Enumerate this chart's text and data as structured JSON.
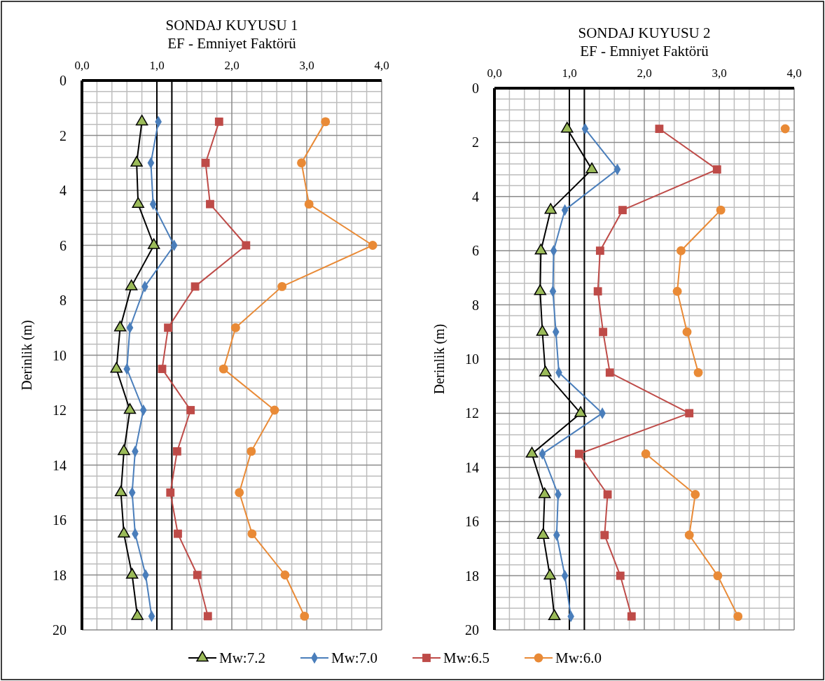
{
  "chart_data": [
    {
      "type": "line",
      "title": "SONDAJ KUYUSU 1",
      "subtitle": "EF  - Emniyet Faktörü",
      "ylabel": "Derinlik (m)",
      "xlim": [
        0,
        4
      ],
      "xticks": [
        {
          "value": 0,
          "label": "0,0"
        },
        {
          "value": 1,
          "label": "1,0"
        },
        {
          "value": 2,
          "label": "2,0"
        },
        {
          "value": 3,
          "label": "3,0"
        },
        {
          "value": 4,
          "label": "4,0"
        }
      ],
      "ylim": [
        20,
        0
      ],
      "yticks": [
        0,
        2,
        4,
        6,
        8,
        10,
        12,
        14,
        16,
        18,
        20
      ],
      "grid": true,
      "legend": "bottom",
      "ref_lines": [
        {
          "axis": "x",
          "value": 1.0,
          "color": "#000000"
        },
        {
          "axis": "x",
          "value": 1.2,
          "color": "#000000"
        }
      ],
      "series": [
        {
          "name": "Mw:7.2",
          "color": "#000000",
          "marker": "triangle",
          "x": [
            0.8,
            0.73,
            0.75,
            0.96,
            0.66,
            0.51,
            0.46,
            0.64,
            0.56,
            0.52,
            0.56,
            0.67,
            0.74
          ],
          "values": [
            1.5,
            3,
            4.5,
            6,
            7.5,
            9,
            10.5,
            12,
            13.5,
            15,
            16.5,
            18,
            19.5
          ]
        },
        {
          "name": "Mw:7.0",
          "color": "#4a7ebb",
          "marker": "diamond",
          "x": [
            1.02,
            0.92,
            0.95,
            1.23,
            0.84,
            0.64,
            0.6,
            0.82,
            0.71,
            0.67,
            0.71,
            0.85,
            0.93
          ],
          "values": [
            1.5,
            3,
            4.5,
            6,
            7.5,
            9,
            10.5,
            12,
            13.5,
            15,
            16.5,
            18,
            19.5
          ]
        },
        {
          "name": "Mw:6.5",
          "color": "#be4b48",
          "marker": "square",
          "x": [
            1.83,
            1.65,
            1.71,
            2.19,
            1.51,
            1.15,
            1.07,
            1.45,
            1.27,
            1.18,
            1.28,
            1.54,
            1.68
          ],
          "values": [
            1.5,
            3,
            4.5,
            6,
            7.5,
            9,
            10.5,
            12,
            13.5,
            15,
            16.5,
            18,
            19.5
          ]
        },
        {
          "name": "Mw:6.0",
          "color": "#e98a36",
          "marker": "circle",
          "x": [
            3.25,
            2.93,
            3.03,
            3.88,
            2.67,
            2.05,
            1.89,
            2.57,
            2.26,
            2.1,
            2.27,
            2.71,
            2.97
          ],
          "values": [
            1.5,
            3,
            4.5,
            6,
            7.5,
            9,
            10.5,
            12,
            13.5,
            15,
            16.5,
            18,
            19.5
          ]
        }
      ]
    },
    {
      "type": "line",
      "title": "SONDAJ KUYUSU 2",
      "subtitle": "EF  - Emniyet Faktörü",
      "ylabel": "Derinlik (m)",
      "xlim": [
        0,
        4
      ],
      "xticks": [
        {
          "value": 0,
          "label": "0,0"
        },
        {
          "value": 1,
          "label": "1,0"
        },
        {
          "value": 2,
          "label": "2,0"
        },
        {
          "value": 3,
          "label": "3,0"
        },
        {
          "value": 4,
          "label": "4,0"
        }
      ],
      "ylim": [
        20,
        0
      ],
      "yticks": [
        0,
        2,
        4,
        6,
        8,
        10,
        12,
        14,
        16,
        18,
        20
      ],
      "grid": true,
      "legend": "bottom",
      "ref_lines": [
        {
          "axis": "x",
          "value": 1.0,
          "color": "#000000"
        },
        {
          "axis": "x",
          "value": 1.2,
          "color": "#000000"
        }
      ],
      "series": [
        {
          "name": "Mw:7.2",
          "color": "#000000",
          "marker": "triangle",
          "x": [
            0.97,
            1.3,
            0.75,
            0.62,
            0.61,
            0.64,
            0.68,
            1.15,
            0.5,
            0.67,
            0.65,
            0.74,
            0.8
          ],
          "values": [
            1.5,
            3,
            4.5,
            6,
            7.5,
            9,
            10.5,
            12,
            13.5,
            15,
            16.5,
            18,
            19.5
          ]
        },
        {
          "name": "Mw:7.0",
          "color": "#4a7ebb",
          "marker": "diamond",
          "x": [
            1.21,
            1.64,
            0.94,
            0.79,
            0.78,
            0.82,
            0.86,
            1.44,
            0.64,
            0.85,
            0.83,
            0.94,
            1.02
          ],
          "values": [
            1.5,
            3,
            4.5,
            6,
            7.5,
            9,
            10.5,
            12,
            13.5,
            15,
            16.5,
            18,
            19.5
          ]
        },
        {
          "name": "Mw:6.5",
          "color": "#be4b48",
          "marker": "square",
          "x": [
            2.2,
            2.97,
            1.71,
            1.41,
            1.38,
            1.45,
            1.54,
            2.6,
            1.13,
            1.51,
            1.47,
            1.68,
            1.83
          ],
          "values": [
            1.5,
            3,
            4.5,
            6,
            7.5,
            9,
            10.5,
            12,
            13.5,
            15,
            16.5,
            18,
            19.5
          ]
        },
        {
          "name": "Mw:6.0",
          "color": "#e98a36",
          "marker": "circle",
          "x": [
            3.88,
            null,
            3.02,
            2.49,
            2.44,
            2.57,
            2.72,
            null,
            2.02,
            2.68,
            2.6,
            2.98,
            3.25
          ],
          "values": [
            1.5,
            null,
            4.5,
            6,
            7.5,
            9,
            10.5,
            null,
            13.5,
            15,
            16.5,
            18,
            19.5
          ]
        }
      ]
    }
  ]
}
